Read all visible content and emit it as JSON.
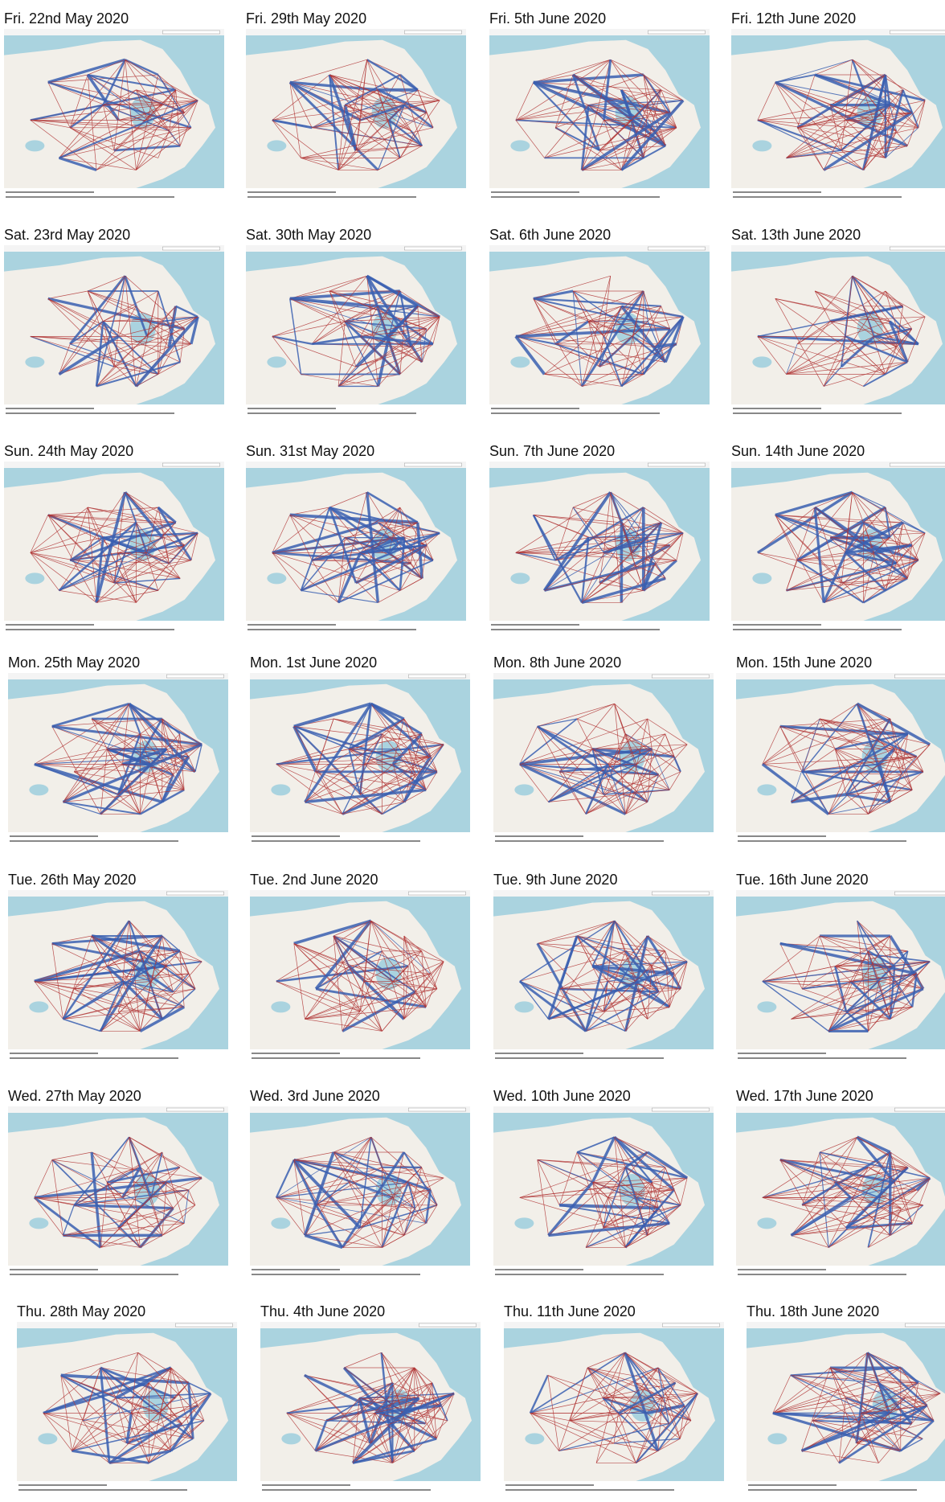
{
  "panels": [
    {
      "title": "Fri. 22nd May 2020"
    },
    {
      "title": "Fri. 29th May 2020"
    },
    {
      "title": "Fri. 5th June 2020"
    },
    {
      "title": "Fri. 12th June 2020"
    },
    {
      "title": "Sat. 23rd May 2020"
    },
    {
      "title": "Sat. 30th May 2020"
    },
    {
      "title": "Sat. 6th June 2020"
    },
    {
      "title": "Sat. 13th June 2020"
    },
    {
      "title": "Sun. 24th May 2020"
    },
    {
      "title": "Sun. 31st May 2020"
    },
    {
      "title": "Sun. 7th June 2020"
    },
    {
      "title": "Sun. 14th June 2020"
    },
    {
      "title": "Mon. 25th May 2020"
    },
    {
      "title": "Mon. 1st June 2020"
    },
    {
      "title": "Mon. 8th June 2020"
    },
    {
      "title": "Mon. 15th June 2020"
    },
    {
      "title": "Tue. 26th May 2020"
    },
    {
      "title": "Tue. 2nd June 2020"
    },
    {
      "title": "Tue. 9th June 2020"
    },
    {
      "title": "Tue. 16th June 2020"
    },
    {
      "title": "Wed. 27th May 2020"
    },
    {
      "title": "Wed. 3rd June 2020"
    },
    {
      "title": "Wed. 10th June 2020"
    },
    {
      "title": "Wed. 17th June 2020"
    },
    {
      "title": "Thu. 28th May 2020"
    },
    {
      "title": "Thu. 4th June 2020"
    },
    {
      "title": "Thu. 11th June 2020"
    },
    {
      "title": "Thu. 18th June 2020"
    }
  ]
}
